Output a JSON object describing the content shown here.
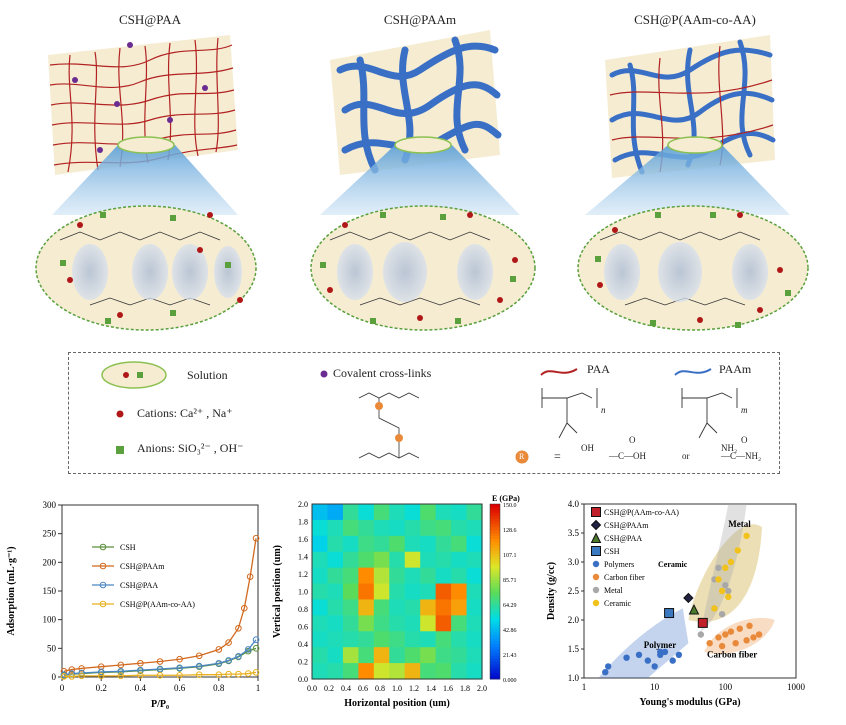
{
  "schematics": {
    "titles": [
      "CSH@PAA",
      "CSH@PAAm",
      "CSH@P(AAm-co-AA)"
    ]
  },
  "legend": {
    "solution": "Solution",
    "cations": "Cations: Ca²⁺ , Na⁺",
    "anions": "Anions: SiO₃²⁻ , OH⁻",
    "crosslinks": "Covalent cross-links",
    "paa": "PAA",
    "paam": "PAAm",
    "r_def_eq": "=",
    "r_def_cooh": "—C—OH",
    "r_def_or": "or",
    "r_def_conh2": "—C—NH₂",
    "r_symbol": "R",
    "subscript_n": "n",
    "subscript_m": "m",
    "oh": "OH",
    "nh2": "NH₂",
    "o": "O"
  },
  "colors": {
    "paa": "#b22222",
    "paam": "#3a6fc6",
    "solution": "#f5ecd2",
    "cation": "#b01818",
    "anion": "#5aa03c",
    "crosslink": "#6a2c91"
  },
  "chart_data": [
    {
      "type": "line",
      "xlabel": "P/P₀",
      "ylabel": "Adsorption (mL·g⁻¹)",
      "xlim": [
        0,
        1
      ],
      "ylim": [
        0,
        300
      ],
      "xticks": [
        "0",
        "0.2",
        "0.4",
        "0.6",
        "0.8",
        "1"
      ],
      "yticks": [
        "0",
        "50",
        "100",
        "150",
        "200",
        "250",
        "300"
      ],
      "legend_position": "top-left",
      "series": [
        {
          "name": "CSH",
          "color": "#5a8f3a",
          "x": [
            0.01,
            0.05,
            0.1,
            0.2,
            0.3,
            0.4,
            0.5,
            0.6,
            0.7,
            0.8,
            0.85,
            0.9,
            0.95,
            0.99
          ],
          "y": [
            3,
            5,
            6,
            8,
            9,
            11,
            13,
            15,
            18,
            23,
            28,
            35,
            45,
            50
          ]
        },
        {
          "name": "CSH@PAAm",
          "color": "#d2691e",
          "x": [
            0.01,
            0.05,
            0.1,
            0.2,
            0.3,
            0.4,
            0.5,
            0.6,
            0.7,
            0.8,
            0.85,
            0.9,
            0.93,
            0.96,
            0.99
          ],
          "y": [
            10,
            13,
            15,
            18,
            21,
            24,
            27,
            31,
            37,
            48,
            60,
            85,
            120,
            175,
            242
          ]
        },
        {
          "name": "CSH@PAA",
          "color": "#4a86c4",
          "x": [
            0.01,
            0.05,
            0.1,
            0.2,
            0.3,
            0.4,
            0.5,
            0.6,
            0.7,
            0.8,
            0.85,
            0.9,
            0.95,
            0.99
          ],
          "y": [
            4,
            6,
            7,
            9,
            10,
            12,
            14,
            16,
            19,
            24,
            29,
            36,
            48,
            65
          ]
        },
        {
          "name": "CSH@P(AAm-co-AA)",
          "color": "#e8b020",
          "x": [
            0.01,
            0.05,
            0.1,
            0.2,
            0.3,
            0.4,
            0.5,
            0.6,
            0.7,
            0.8,
            0.85,
            0.9,
            0.95,
            0.99
          ],
          "y": [
            1,
            1,
            2,
            2,
            2,
            3,
            3,
            3,
            4,
            4,
            5,
            5,
            6,
            8
          ]
        }
      ]
    },
    {
      "type": "heatmap",
      "xlabel": "Horizontal position (um)",
      "ylabel": "Vertical position (um)",
      "xlim": [
        0,
        2.0
      ],
      "ylim": [
        0,
        2.0
      ],
      "xticks": [
        "0.0",
        "0.2",
        "0.4",
        "0.6",
        "0.8",
        "1.0",
        "1.2",
        "1.4",
        "1.6",
        "1.8",
        "2.0"
      ],
      "yticks": [
        "0.0",
        "0.2",
        "0.4",
        "0.6",
        "0.8",
        "1.0",
        "1.2",
        "1.4",
        "1.6",
        "1.8",
        "2.0"
      ],
      "colorbar_title": "E (GPa)",
      "colorbar_ticks": [
        "150.0",
        "128.6",
        "107.1",
        "85.71",
        "64.29",
        "42.86",
        "21.43",
        "0.000"
      ],
      "grid_values": [
        [
          45,
          40,
          65,
          55,
          70,
          60,
          55,
          72,
          60,
          58,
          65
        ],
        [
          55,
          60,
          70,
          65,
          60,
          58,
          62,
          68,
          70,
          62,
          60
        ],
        [
          50,
          62,
          58,
          68,
          65,
          72,
          60,
          58,
          65,
          70,
          55
        ],
        [
          60,
          55,
          65,
          72,
          80,
          62,
          95,
          60,
          62,
          58,
          60
        ],
        [
          58,
          65,
          70,
          120,
          90,
          65,
          60,
          65,
          58,
          62,
          55
        ],
        [
          62,
          60,
          75,
          125,
          95,
          62,
          58,
          60,
          130,
          120,
          60
        ],
        [
          55,
          62,
          68,
          110,
          70,
          60,
          62,
          110,
          125,
          115,
          58
        ],
        [
          60,
          58,
          65,
          80,
          68,
          62,
          60,
          95,
          130,
          70,
          60
        ],
        [
          58,
          60,
          62,
          65,
          72,
          68,
          62,
          60,
          70,
          62,
          58
        ],
        [
          62,
          58,
          88,
          70,
          110,
          65,
          72,
          80,
          68,
          65,
          60
        ],
        [
          60,
          62,
          70,
          120,
          95,
          90,
          110,
          70,
          72,
          62,
          58
        ]
      ]
    },
    {
      "type": "scatter",
      "xlabel": "Young's modulus (GPa)",
      "ylabel": "Density (g/cc)",
      "xscale": "log",
      "xlim": [
        1,
        1000
      ],
      "ylim": [
        1.0,
        4.0
      ],
      "xticks": [
        "1",
        "10",
        "100",
        "1000"
      ],
      "yticks": [
        "1.0",
        "1.5",
        "2.0",
        "2.5",
        "3.0",
        "3.5",
        "4.0"
      ],
      "legend_position": "top-left",
      "annotations": [
        "Metal",
        "Ceramic",
        "Polymer",
        "Carbon fiber"
      ],
      "series": [
        {
          "name": "CSH@P(AAm-co-AA)",
          "color": "#c0202a",
          "marker": "square",
          "x": [
            48
          ],
          "y": [
            1.95
          ]
        },
        {
          "name": "CSH@PAAm",
          "color": "#222244",
          "marker": "diamond",
          "x": [
            30
          ],
          "y": [
            2.38
          ]
        },
        {
          "name": "CSH@PAA",
          "color": "#4a7a2a",
          "marker": "triangle",
          "x": [
            36
          ],
          "y": [
            2.18
          ]
        },
        {
          "name": "CSH",
          "color": "#3a78c0",
          "marker": "square",
          "x": [
            16
          ],
          "y": [
            2.12
          ]
        },
        {
          "name": "Polymers",
          "color": "#3a6fc6",
          "marker": "circle",
          "x": [
            2,
            2.2,
            4,
            6,
            8,
            12,
            18,
            22,
            12,
            10,
            14
          ],
          "y": [
            1.1,
            1.2,
            1.35,
            1.4,
            1.3,
            1.45,
            1.3,
            1.4,
            1.4,
            1.2,
            1.45
          ]
        },
        {
          "name": "Carbon fiber",
          "color": "#e88a3a",
          "marker": "circle",
          "x": [
            60,
            80,
            100,
            120,
            160,
            200,
            250,
            300,
            90,
            140,
            220
          ],
          "y": [
            1.6,
            1.7,
            1.75,
            1.8,
            1.85,
            1.65,
            1.7,
            1.75,
            1.55,
            1.6,
            1.9
          ]
        },
        {
          "name": "Metal",
          "color": "#a8a8a8",
          "marker": "circle",
          "x": [
            45,
            70,
            80,
            100,
            70,
            110,
            90
          ],
          "y": [
            1.75,
            2.7,
            2.9,
            2.6,
            2.2,
            2.5,
            2.1
          ]
        },
        {
          "name": "Ceramic",
          "color": "#f2c21c",
          "marker": "circle",
          "x": [
            70,
            90,
            100,
            120,
            150,
            200,
            80,
            110
          ],
          "y": [
            2.2,
            2.5,
            2.9,
            3.0,
            3.2,
            3.45,
            2.7,
            2.4
          ]
        }
      ]
    }
  ]
}
